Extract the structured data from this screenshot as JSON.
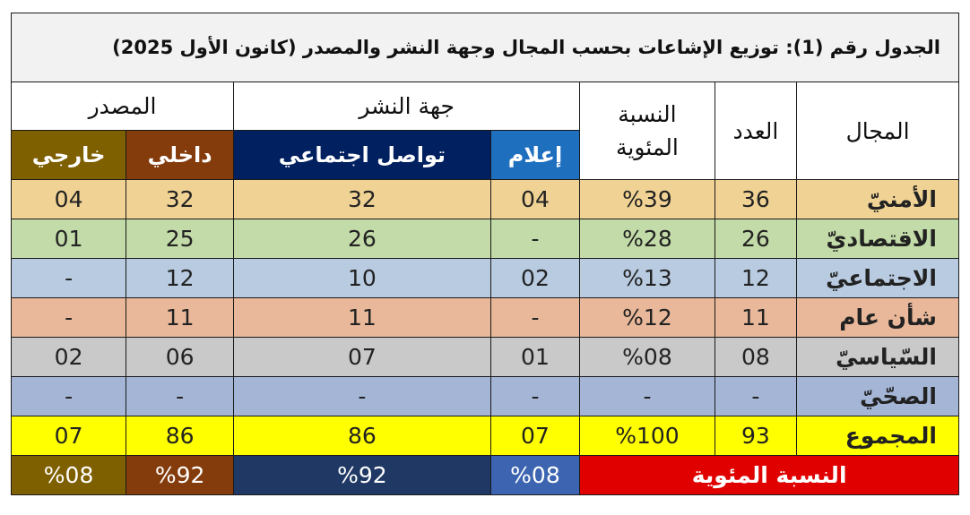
{
  "title": "الجدول رقم (1): توزيع الإشاعات بحسب المجال وجهة النشر والمصدر (كانون الأول 2025)",
  "headers": {
    "domain": "المجال",
    "count": "العدد",
    "percent": "النسبة المئوية",
    "publisher": "جهة النشر",
    "media": "إعلام",
    "social": "تواصل اجتماعي",
    "source": "المصدر",
    "internal": "داخلي",
    "external": "خارجي"
  },
  "rows": [
    {
      "domain": "الأمنيّ",
      "count": "36",
      "percent": "%39",
      "media": "04",
      "social": "32",
      "internal": "32",
      "external": "04",
      "color": "#f0d394"
    },
    {
      "domain": "الاقتصاديّ",
      "count": "26",
      "percent": "%28",
      "media": "-",
      "social": "26",
      "internal": "25",
      "external": "01",
      "color": "#c3dba8"
    },
    {
      "domain": "الاجتماعيّ",
      "count": "12",
      "percent": "%13",
      "media": "02",
      "social": "10",
      "internal": "12",
      "external": "-",
      "color": "#b8cbe0"
    },
    {
      "domain": "شأن عام",
      "count": "11",
      "percent": "%12",
      "media": "-",
      "social": "11",
      "internal": "11",
      "external": "-",
      "color": "#e9b89a"
    },
    {
      "domain": "السّياسيّ",
      "count": "08",
      "percent": "%08",
      "media": "01",
      "social": "07",
      "internal": "06",
      "external": "02",
      "color": "#c9c9c9"
    },
    {
      "domain": "الصحّيّ",
      "count": "-",
      "percent": "-",
      "media": "-",
      "social": "-",
      "internal": "-",
      "external": "-",
      "color": "#a4b5d6"
    },
    {
      "domain": "المجموع",
      "count": "93",
      "percent": "%100",
      "media": "07",
      "social": "86",
      "internal": "86",
      "external": "07",
      "color": "#ffff00"
    }
  ],
  "percentage_row": {
    "label": "النسبة المئوية",
    "media": "%08",
    "social": "%92",
    "internal": "%92",
    "external": "%08"
  },
  "colors": {
    "media": "#1f6fbf",
    "social": "#002060",
    "internal": "#843c0c",
    "external": "#7f6000",
    "percent_label": "#e00000",
    "pct_media": "#3c64b0",
    "pct_social": "#1f3864",
    "pct_internal": "#843c0c",
    "pct_external": "#7f6000"
  }
}
